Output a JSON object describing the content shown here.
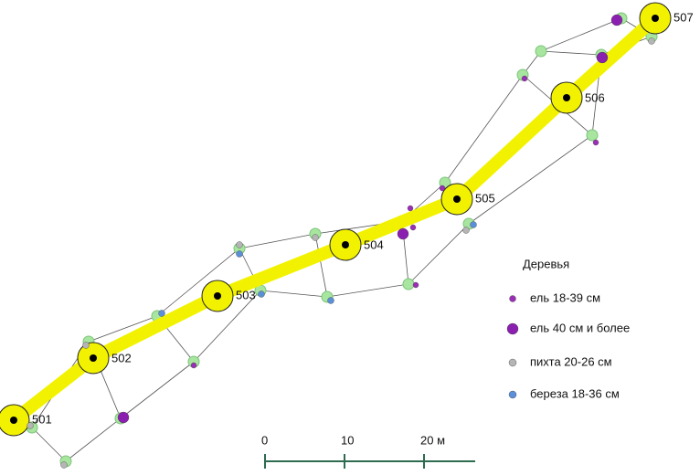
{
  "stations": [
    {
      "label": "501"
    },
    {
      "label": "502"
    },
    {
      "label": "503"
    },
    {
      "label": "504"
    },
    {
      "label": "505"
    },
    {
      "label": "506"
    },
    {
      "label": "507"
    }
  ],
  "legend": {
    "title": "Деревья",
    "items": [
      {
        "label": "ель 18-39 см"
      },
      {
        "label": "ель 40 см и более"
      },
      {
        "label": "пихта 20-26 см"
      },
      {
        "label": "береза 18-36 см"
      }
    ]
  },
  "scale_bar": {
    "labels": [
      "0",
      "10",
      "20 м"
    ]
  }
}
